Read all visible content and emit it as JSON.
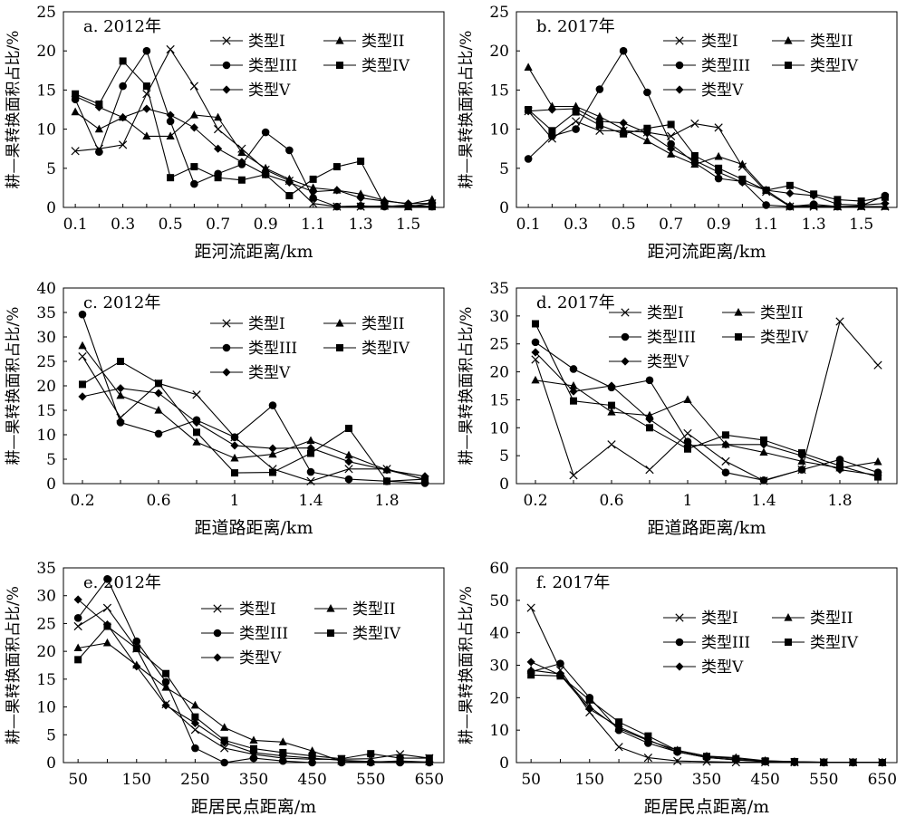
{
  "series_names": [
    "类型I",
    "类型II",
    "类型III",
    "类型IV",
    "类型V"
  ],
  "ylabel": "耕—果转换面积占比/%",
  "chart_data": [
    {
      "type": "line",
      "label": "a. 2012年",
      "xlabel": "距河流距离/km",
      "x": [
        0.1,
        0.2,
        0.3,
        0.4,
        0.5,
        0.6,
        0.7,
        0.8,
        0.9,
        1.0,
        1.1,
        1.2,
        1.3,
        1.4,
        1.5,
        1.6
      ],
      "xticks": [
        "0.1",
        "0.3",
        "0.5",
        "0.7",
        "0.9",
        "1.1",
        "1.3",
        "1.5"
      ],
      "ylim": [
        0,
        25
      ],
      "yticks": [
        0,
        5,
        10,
        15,
        20,
        25
      ],
      "legend": "top-right",
      "grid": false,
      "series": [
        {
          "name": "类型I",
          "marker": "x",
          "values": [
            7.2,
            7.5,
            8,
            14.5,
            20.2,
            15.5,
            10,
            7.5,
            4.8,
            3.4,
            0.5,
            0.1,
            0.1,
            0.2,
            0.1,
            0.5
          ]
        },
        {
          "name": "类型II",
          "marker": "triangle",
          "values": [
            12.2,
            10,
            11.5,
            9.1,
            9.1,
            11.8,
            11.5,
            7,
            5,
            3.6,
            2.5,
            2.2,
            1.7,
            0.9,
            0.4,
            1
          ]
        },
        {
          "name": "类型III",
          "marker": "circle",
          "values": [
            13.8,
            7.1,
            15.5,
            20,
            11,
            3,
            4.3,
            5.5,
            9.6,
            7.3,
            1.2,
            0.1,
            0.2,
            0.1,
            0.3,
            0.1
          ]
        },
        {
          "name": "类型IV",
          "marker": "square",
          "values": [
            14.5,
            13.2,
            18.7,
            15.5,
            3.8,
            5.2,
            3.8,
            3.5,
            4.2,
            1.5,
            3.6,
            5.2,
            5.9,
            0.2,
            0.1,
            0.1
          ]
        },
        {
          "name": "类型V",
          "marker": "diamond",
          "values": [
            14.2,
            12.8,
            11.5,
            12.6,
            11.8,
            10.2,
            7.5,
            5.8,
            4.2,
            3.2,
            2,
            2.2,
            1.2,
            0.8,
            0.5,
            0.5
          ]
        }
      ]
    },
    {
      "type": "line",
      "label": "b. 2017年",
      "xlabel": "距河流距离/km",
      "x": [
        0.1,
        0.2,
        0.3,
        0.4,
        0.5,
        0.6,
        0.7,
        0.8,
        0.9,
        1.0,
        1.1,
        1.2,
        1.3,
        1.4,
        1.5,
        1.6
      ],
      "xticks": [
        "0.1",
        "0.3",
        "0.5",
        "0.7",
        "0.9",
        "1.1",
        "1.3",
        "1.5"
      ],
      "ylim": [
        0,
        25
      ],
      "yticks": [
        0,
        5,
        10,
        15,
        20,
        25
      ],
      "legend": "top-right",
      "grid": false,
      "series": [
        {
          "name": "类型I",
          "marker": "x",
          "values": [
            12.3,
            8.8,
            11,
            9.8,
            9.8,
            9.6,
            9.1,
            10.7,
            10.2,
            5.2,
            2,
            0.1,
            0.1,
            0.1,
            0.1,
            0.1
          ]
        },
        {
          "name": "类型II",
          "marker": "triangle",
          "values": [
            17.9,
            12.9,
            12.9,
            11.6,
            10,
            8.5,
            6.8,
            5.5,
            6.5,
            5.5,
            2.2,
            0.2,
            0.2,
            0.1,
            0.1,
            0.1
          ]
        },
        {
          "name": "类型III",
          "marker": "circle",
          "values": [
            6.2,
            9.1,
            10,
            15.1,
            20,
            14.7,
            8.1,
            5.7,
            3.7,
            3.3,
            0.3,
            0.1,
            0.4,
            0.1,
            0.2,
            1.5
          ]
        },
        {
          "name": "类型IV",
          "marker": "square",
          "values": [
            12.5,
            9.8,
            12.2,
            10.5,
            9.4,
            10.1,
            10.6,
            6.6,
            5,
            3.6,
            2.2,
            2.8,
            1.7,
            1,
            0.8,
            1.3
          ]
        },
        {
          "name": "类型V",
          "marker": "diamond",
          "values": [
            12.3,
            12.5,
            12.6,
            11,
            10.8,
            9.5,
            7.5,
            6,
            4.5,
            3.2,
            2.2,
            1.8,
            1.5,
            0.4,
            0.3,
            0.5
          ]
        }
      ]
    },
    {
      "type": "line",
      "label": "c. 2012年",
      "xlabel": "距道路距离/km",
      "x": [
        0.2,
        0.4,
        0.6,
        0.8,
        1.0,
        1.2,
        1.4,
        1.6,
        1.8,
        2.0
      ],
      "xticks": [
        "0.2",
        "0.6",
        "1",
        "1.4",
        "1.8"
      ],
      "ylim": [
        0,
        40
      ],
      "yticks": [
        0,
        5,
        10,
        15,
        20,
        25,
        30,
        35,
        40
      ],
      "legend": "top-right",
      "grid": false,
      "series": [
        {
          "name": "类型I",
          "marker": "x",
          "values": [
            26,
            13.5,
            20.5,
            18.2,
            9.5,
            3,
            0.5,
            3,
            3,
            0.8
          ]
        },
        {
          "name": "类型II",
          "marker": "triangle",
          "values": [
            28.2,
            18,
            15,
            8.5,
            5.2,
            6,
            8.8,
            5.8,
            2.8,
            0.9
          ]
        },
        {
          "name": "类型III",
          "marker": "circle",
          "values": [
            34.6,
            12.5,
            10.2,
            13,
            9.5,
            16,
            2.4,
            0.9,
            0.5,
            0.1
          ]
        },
        {
          "name": "类型IV",
          "marker": "square",
          "values": [
            20.3,
            25,
            20.5,
            10.5,
            2.2,
            2.3,
            6.2,
            11.3,
            0.5,
            0.9
          ]
        },
        {
          "name": "类型V",
          "marker": "diamond",
          "values": [
            17.8,
            19.5,
            18.5,
            12.5,
            7.8,
            7.2,
            7.3,
            4.5,
            2.8,
            1.5
          ]
        }
      ]
    },
    {
      "type": "line",
      "label": "d. 2017年",
      "xlabel": "距道路距离/km",
      "x": [
        0.2,
        0.4,
        0.6,
        0.8,
        1.0,
        1.2,
        1.4,
        1.6,
        1.8,
        2.0
      ],
      "xticks": [
        "0.2",
        "0.6",
        "1",
        "1.4",
        "1.8"
      ],
      "ylim": [
        0,
        35
      ],
      "yticks": [
        0,
        5,
        10,
        15,
        20,
        25,
        30,
        35
      ],
      "legend": "top-right",
      "grid": false,
      "series": [
        {
          "name": "类型I",
          "marker": "x",
          "values": [
            22.2,
            1.5,
            7,
            2.5,
            9,
            4,
            0.5,
            2.5,
            29,
            21.2
          ]
        },
        {
          "name": "类型II",
          "marker": "triangle",
          "values": [
            18.5,
            17.5,
            12.8,
            12.2,
            15,
            7,
            5.6,
            4,
            2.8,
            3.9
          ]
        },
        {
          "name": "类型III",
          "marker": "circle",
          "values": [
            25.3,
            20.5,
            17.2,
            18.5,
            7.5,
            2,
            0.6,
            2.5,
            4.3,
            2
          ]
        },
        {
          "name": "类型IV",
          "marker": "square",
          "values": [
            28.6,
            14.8,
            14,
            10,
            6.2,
            8.7,
            7.8,
            5.5,
            3.2,
            1.2
          ]
        },
        {
          "name": "类型V",
          "marker": "diamond",
          "values": [
            23.5,
            16.5,
            17.5,
            11.5,
            6.8,
            7,
            7,
            5,
            2.5,
            1.5
          ]
        }
      ]
    },
    {
      "type": "line",
      "label": "e. 2012年",
      "xlabel": "距居民点距离/m",
      "x": [
        50,
        100,
        150,
        200,
        250,
        300,
        350,
        400,
        450,
        500,
        550,
        600,
        650
      ],
      "xticks": [
        "50",
        "150",
        "250",
        "350",
        "450",
        "550",
        "650"
      ],
      "ylim": [
        0,
        35
      ],
      "yticks": [
        0,
        5,
        10,
        15,
        20,
        25,
        30,
        35
      ],
      "legend": "right",
      "grid": false,
      "series": [
        {
          "name": "类型I",
          "marker": "x",
          "values": [
            24.5,
            27.8,
            20.5,
            10.5,
            5.9,
            2.6,
            1.5,
            0.8,
            0.6,
            0.6,
            0.7,
            1.5,
            0.8
          ]
        },
        {
          "name": "类型II",
          "marker": "triangle",
          "values": [
            20.6,
            21.5,
            17.5,
            13.5,
            10.3,
            6.3,
            4,
            3.7,
            2.1,
            0.2,
            0.1,
            0.3,
            0.1
          ]
        },
        {
          "name": "类型III",
          "marker": "circle",
          "values": [
            26,
            33,
            21.8,
            14.5,
            2.6,
            0,
            0.8,
            0.3,
            0,
            0,
            0,
            0,
            0
          ]
        },
        {
          "name": "类型IV",
          "marker": "square",
          "values": [
            18.5,
            24.5,
            20.5,
            16,
            8.2,
            4,
            2.5,
            1.8,
            1.2,
            0.7,
            1.6,
            0.8,
            0.8
          ]
        },
        {
          "name": "类型V",
          "marker": "diamond",
          "values": [
            29.3,
            24.8,
            17.3,
            10.3,
            7.1,
            3.6,
            1.8,
            1.2,
            0.8,
            0.4,
            0.2,
            0.1,
            0.1
          ]
        }
      ]
    },
    {
      "type": "line",
      "label": "f. 2017年",
      "xlabel": "距居民点距离/m",
      "x": [
        50,
        100,
        150,
        200,
        250,
        300,
        350,
        400,
        450,
        500,
        550,
        600,
        650
      ],
      "xticks": [
        "50",
        "150",
        "250",
        "350",
        "450",
        "550",
        "650"
      ],
      "ylim": [
        0,
        60
      ],
      "yticks": [
        0,
        10,
        20,
        30,
        40,
        50,
        60
      ],
      "legend": "right",
      "grid": false,
      "series": [
        {
          "name": "类型I",
          "marker": "x",
          "values": [
            47.7,
            28.5,
            15.5,
            4.8,
            1.5,
            0.5,
            0.3,
            0.1,
            0.1,
            0.1,
            0.1,
            0.1,
            0.1
          ]
        },
        {
          "name": "类型II",
          "marker": "triangle",
          "values": [
            28.5,
            27.3,
            17.2,
            10.5,
            6.8,
            3.8,
            2,
            1.5,
            0.6,
            0.3,
            0.1,
            0.1,
            0.1
          ]
        },
        {
          "name": "类型III",
          "marker": "circle",
          "values": [
            28,
            30.5,
            20,
            10,
            6,
            3.3,
            1.6,
            0.8,
            0.3,
            0.1,
            0,
            0,
            0
          ]
        },
        {
          "name": "类型IV",
          "marker": "square",
          "values": [
            27,
            26.7,
            19.3,
            12.5,
            8.2,
            3.7,
            1.9,
            1.2,
            0.5,
            0.3,
            0.1,
            0.1,
            0
          ]
        },
        {
          "name": "类型V",
          "marker": "diamond",
          "values": [
            31,
            27,
            16.5,
            11,
            7,
            3.3,
            1.6,
            0.8,
            0.4,
            0.1,
            0.1,
            0.1,
            0
          ]
        }
      ]
    }
  ]
}
